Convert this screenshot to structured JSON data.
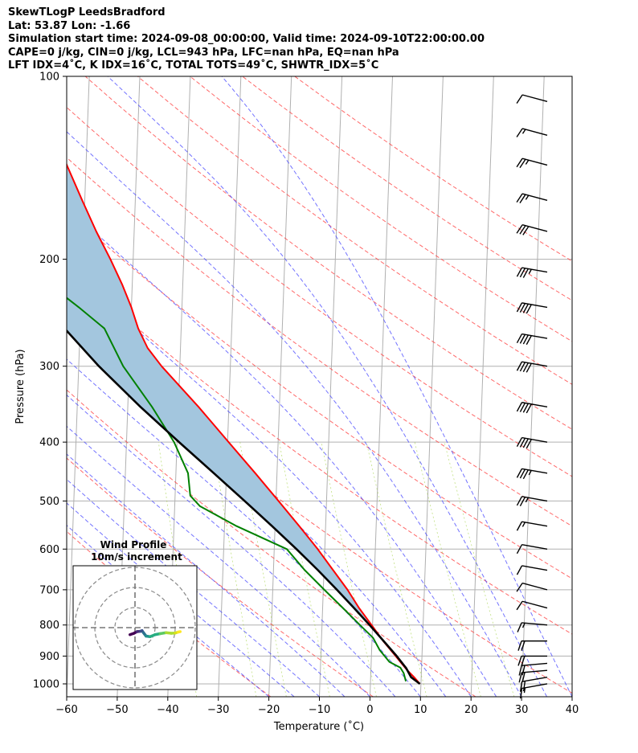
{
  "header": {
    "line1": "SkewTLogP LeedsBradford",
    "line2": "Lat: 53.87   Lon: -1.66",
    "line3": "Simulation start time: 2024-09-08_00:00:00, Valid time: 2024-09-10T22:00:00.00",
    "line4": "CAPE=0 j/kg, CIN=0 j/kg, LCL=943 hPa, LFC=nan hPa, EQ=nan hPa",
    "line5": "LFT IDX=4˚C, K IDX=16˚C, TOTAL TOTS=49˚C, SHWTR_IDX=5˚C"
  },
  "chart_data": {
    "type": "line",
    "xlabel": "Temperature (˚C)",
    "ylabel": "Pressure (hPa)",
    "xlim": [
      -60,
      40
    ],
    "ylim": [
      1050,
      100
    ],
    "y_scale": "log",
    "grid": true,
    "x_ticks": [
      "−60",
      "−50",
      "−40",
      "−30",
      "−20",
      "−10",
      "0",
      "10",
      "20",
      "30",
      "40"
    ],
    "y_ticks": [
      "100",
      "200",
      "300",
      "400",
      "500",
      "600",
      "700",
      "800",
      "900",
      "1000"
    ],
    "series": [
      {
        "role": "temperature",
        "color": "#ff0000",
        "points": [
          [
            1000,
            9.8
          ],
          [
            975,
            8.6
          ],
          [
            950,
            7.2
          ],
          [
            925,
            6.0
          ],
          [
            900,
            4.8
          ],
          [
            850,
            2.2
          ],
          [
            800,
            -0.2
          ],
          [
            750,
            -2.8
          ],
          [
            700,
            -5.2
          ],
          [
            650,
            -8.2
          ],
          [
            600,
            -11.4
          ],
          [
            550,
            -15.2
          ],
          [
            500,
            -19.5
          ],
          [
            450,
            -24.3
          ],
          [
            400,
            -29.8
          ],
          [
            350,
            -36.0
          ],
          [
            300,
            -43.6
          ],
          [
            280,
            -46.5
          ],
          [
            260,
            -48.5
          ],
          [
            240,
            -50.0
          ],
          [
            220,
            -52.0
          ],
          [
            200,
            -54.5
          ],
          [
            180,
            -57.5
          ],
          [
            160,
            -60.5
          ],
          [
            140,
            -63.8
          ],
          [
            130,
            -65.3
          ],
          [
            120,
            -67.8
          ],
          [
            110,
            -70.5
          ],
          [
            105,
            -71.5
          ],
          [
            100,
            -71.5
          ]
        ]
      },
      {
        "role": "dewpoint",
        "color": "#008000",
        "points": [
          [
            990,
            7.0
          ],
          [
            960,
            6.5
          ],
          [
            940,
            5.8
          ],
          [
            920,
            3.6
          ],
          [
            880,
            1.6
          ],
          [
            840,
            0.2
          ],
          [
            800,
            -2.5
          ],
          [
            750,
            -6.0
          ],
          [
            700,
            -9.8
          ],
          [
            650,
            -13.8
          ],
          [
            600,
            -17.5
          ],
          [
            550,
            -27.6
          ],
          [
            510,
            -35.0
          ],
          [
            490,
            -37.0
          ],
          [
            450,
            -37.6
          ],
          [
            400,
            -40.6
          ],
          [
            350,
            -45.2
          ],
          [
            300,
            -51.2
          ],
          [
            260,
            -55.2
          ],
          [
            240,
            -60.4
          ],
          [
            220,
            -66.4
          ],
          [
            200,
            -74.6
          ],
          [
            180,
            -76.6
          ],
          [
            160,
            -78.8
          ],
          [
            140,
            -80.8
          ],
          [
            120,
            -83.0
          ],
          [
            100,
            -86.5
          ]
        ]
      },
      {
        "role": "parcel",
        "color": "#000000",
        "points": [
          [
            1000,
            9.8
          ],
          [
            975,
            8.0
          ],
          [
            943,
            7.0
          ],
          [
            900,
            5.0
          ],
          [
            850,
            2.3
          ],
          [
            800,
            -0.6
          ],
          [
            750,
            -3.8
          ],
          [
            700,
            -7.3
          ],
          [
            650,
            -11.2
          ],
          [
            600,
            -15.6
          ],
          [
            550,
            -20.6
          ],
          [
            500,
            -26.2
          ],
          [
            450,
            -32.5
          ],
          [
            400,
            -39.6
          ],
          [
            350,
            -47.5
          ],
          [
            300,
            -56.0
          ],
          [
            250,
            -65.0
          ],
          [
            200,
            -74.8
          ],
          [
            150,
            -85.5
          ],
          [
            120,
            -93.0
          ],
          [
            100,
            -98.5
          ]
        ]
      }
    ],
    "cape_cin_shading": {
      "color": "#a3c6de"
    },
    "wind_barbs": [
      {
        "p": 1000,
        "speed_kt": 15,
        "dir": 260
      },
      {
        "p": 975,
        "speed_kt": 20,
        "dir": 260
      },
      {
        "p": 950,
        "speed_kt": 20,
        "dir": 265
      },
      {
        "p": 925,
        "speed_kt": 20,
        "dir": 265
      },
      {
        "p": 900,
        "speed_kt": 20,
        "dir": 270
      },
      {
        "p": 850,
        "speed_kt": 20,
        "dir": 270
      },
      {
        "p": 800,
        "speed_kt": 15,
        "dir": 275
      },
      {
        "p": 750,
        "speed_kt": 10,
        "dir": 285
      },
      {
        "p": 700,
        "speed_kt": 10,
        "dir": 285
      },
      {
        "p": 650,
        "speed_kt": 10,
        "dir": 280
      },
      {
        "p": 600,
        "speed_kt": 10,
        "dir": 280
      },
      {
        "p": 550,
        "speed_kt": 15,
        "dir": 280
      },
      {
        "p": 500,
        "speed_kt": 25,
        "dir": 280
      },
      {
        "p": 450,
        "speed_kt": 35,
        "dir": 280
      },
      {
        "p": 400,
        "speed_kt": 40,
        "dir": 280
      },
      {
        "p": 350,
        "speed_kt": 40,
        "dir": 280
      },
      {
        "p": 300,
        "speed_kt": 40,
        "dir": 280
      },
      {
        "p": 270,
        "speed_kt": 40,
        "dir": 280
      },
      {
        "p": 240,
        "speed_kt": 40,
        "dir": 280
      },
      {
        "p": 210,
        "speed_kt": 35,
        "dir": 280
      },
      {
        "p": 180,
        "speed_kt": 30,
        "dir": 285
      },
      {
        "p": 160,
        "speed_kt": 25,
        "dir": 285
      },
      {
        "p": 140,
        "speed_kt": 25,
        "dir": 285
      },
      {
        "p": 125,
        "speed_kt": 15,
        "dir": 285
      },
      {
        "p": 110,
        "speed_kt": 10,
        "dir": 285
      }
    ]
  },
  "inset": {
    "title": "Wind Profile",
    "subtitle": "10m/s increment",
    "hodograph_u": [
      -2.5,
      -0.5,
      1.0,
      2.8,
      3.5,
      4.2,
      5.5,
      7.5,
      10.0,
      12.5,
      15.5,
      18.0,
      20.0,
      21.5,
      22.5
    ],
    "hodograph_v": [
      -0.5,
      -1.2,
      -2.0,
      -2.2,
      -2.5,
      -1.5,
      0.2,
      0.5,
      -0.5,
      -1.0,
      -1.5,
      -1.2,
      -1.3,
      -1.8,
      -2.0
    ]
  }
}
